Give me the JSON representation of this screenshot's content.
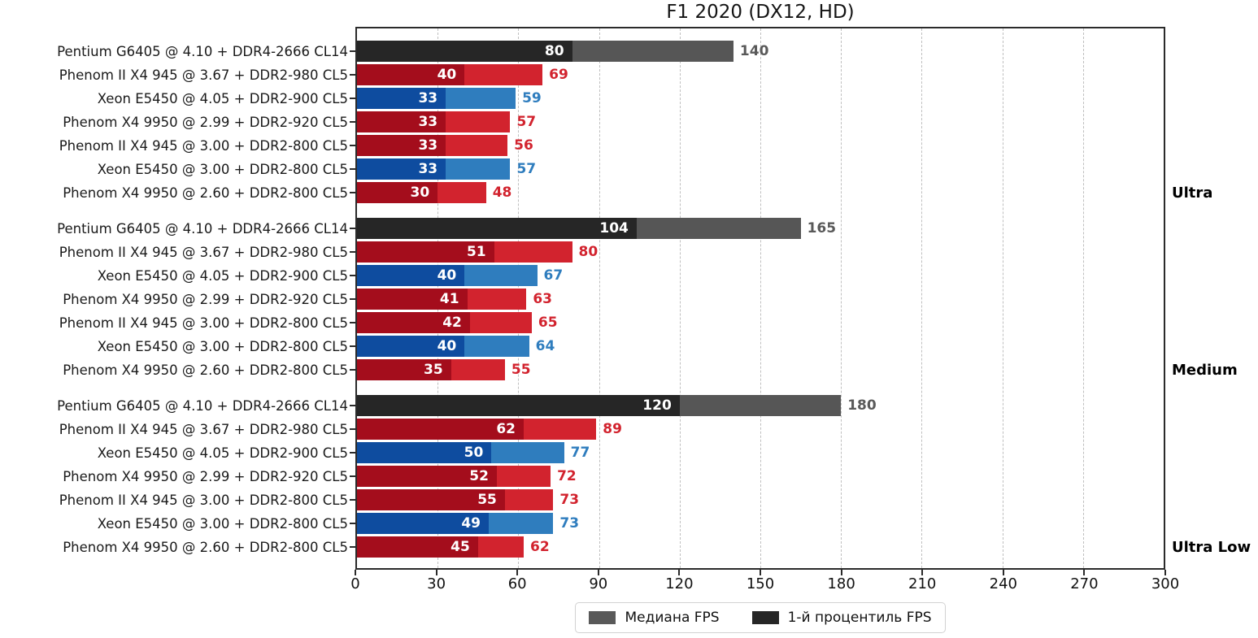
{
  "chart_data": {
    "type": "bar",
    "orientation": "horizontal",
    "title": "F1 2020 (DX12, HD)",
    "xlabel": "",
    "xlim": [
      0,
      300
    ],
    "xticks": [
      0,
      30,
      60,
      90,
      120,
      150,
      180,
      210,
      240,
      270,
      300
    ],
    "grid": "dashed-vertical",
    "legend_position": "bottom-center",
    "series_names": [
      "Медиана FPS",
      "1-й процентиль FPS"
    ],
    "legend": [
      {
        "label": "Медиана FPS",
        "color": "#595959"
      },
      {
        "label": "1-й процентиль FPS",
        "color": "#262626"
      }
    ],
    "palette": {
      "gray": {
        "percentile1": "#262626",
        "median": "#565656",
        "value_text": "#595959"
      },
      "red": {
        "percentile1": "#A40D1C",
        "median": "#D2232E",
        "value_text": "#D2232E"
      },
      "blue": {
        "percentile1": "#0E4C9F",
        "median": "#2F7DBE",
        "value_text": "#2F7DBE"
      }
    },
    "groups": [
      {
        "name": "Ultra",
        "rows": [
          {
            "label": "Pentium G6405 @ 4.10 + DDR4-2666 CL14",
            "color": "gray",
            "percentile1": 80,
            "median": 140
          },
          {
            "label": "Phenom II X4 945 @ 3.67 + DDR2-980 CL5",
            "color": "red",
            "percentile1": 40,
            "median": 69
          },
          {
            "label": "Xeon E5450 @ 4.05 + DDR2-900 CL5",
            "color": "blue",
            "percentile1": 33,
            "median": 59
          },
          {
            "label": "Phenom X4 9950 @ 2.99 + DDR2-920 CL5",
            "color": "red",
            "percentile1": 33,
            "median": 57
          },
          {
            "label": "Phenom II X4 945 @ 3.00 + DDR2-800 CL5",
            "color": "red",
            "percentile1": 33,
            "median": 56
          },
          {
            "label": "Xeon E5450 @ 3.00 + DDR2-800 CL5",
            "color": "blue",
            "percentile1": 33,
            "median": 57
          },
          {
            "label": "Phenom X4 9950 @ 2.60 + DDR2-800 CL5",
            "color": "red",
            "percentile1": 30,
            "median": 48
          }
        ]
      },
      {
        "name": "Medium",
        "rows": [
          {
            "label": "Pentium G6405 @ 4.10 + DDR4-2666 CL14",
            "color": "gray",
            "percentile1": 104,
            "median": 165
          },
          {
            "label": "Phenom II X4 945 @ 3.67 + DDR2-980 CL5",
            "color": "red",
            "percentile1": 51,
            "median": 80
          },
          {
            "label": "Xeon E5450 @ 4.05 + DDR2-900 CL5",
            "color": "blue",
            "percentile1": 40,
            "median": 67
          },
          {
            "label": "Phenom X4 9950 @ 2.99 + DDR2-920 CL5",
            "color": "red",
            "percentile1": 41,
            "median": 63
          },
          {
            "label": "Phenom II X4 945 @ 3.00 + DDR2-800 CL5",
            "color": "red",
            "percentile1": 42,
            "median": 65
          },
          {
            "label": "Xeon E5450 @ 3.00 + DDR2-800 CL5",
            "color": "blue",
            "percentile1": 40,
            "median": 64
          },
          {
            "label": "Phenom X4 9950 @ 2.60 + DDR2-800 CL5",
            "color": "red",
            "percentile1": 35,
            "median": 55
          }
        ]
      },
      {
        "name": "Ultra Low",
        "rows": [
          {
            "label": "Pentium G6405 @ 4.10 + DDR4-2666 CL14",
            "color": "gray",
            "percentile1": 120,
            "median": 180
          },
          {
            "label": "Phenom II X4 945 @ 3.67 + DDR2-980 CL5",
            "color": "red",
            "percentile1": 62,
            "median": 89
          },
          {
            "label": "Xeon E5450 @ 4.05 + DDR2-900 CL5",
            "color": "blue",
            "percentile1": 50,
            "median": 77
          },
          {
            "label": "Phenom X4 9950 @ 2.99 + DDR2-920 CL5",
            "color": "red",
            "percentile1": 52,
            "median": 72
          },
          {
            "label": "Phenom II X4 945 @ 3.00 + DDR2-800 CL5",
            "color": "red",
            "percentile1": 55,
            "median": 73
          },
          {
            "label": "Xeon E5450 @ 3.00 + DDR2-800 CL5",
            "color": "blue",
            "percentile1": 49,
            "median": 73
          },
          {
            "label": "Phenom X4 9950 @ 2.60 + DDR2-800 CL5",
            "color": "red",
            "percentile1": 45,
            "median": 62
          }
        ]
      }
    ]
  }
}
